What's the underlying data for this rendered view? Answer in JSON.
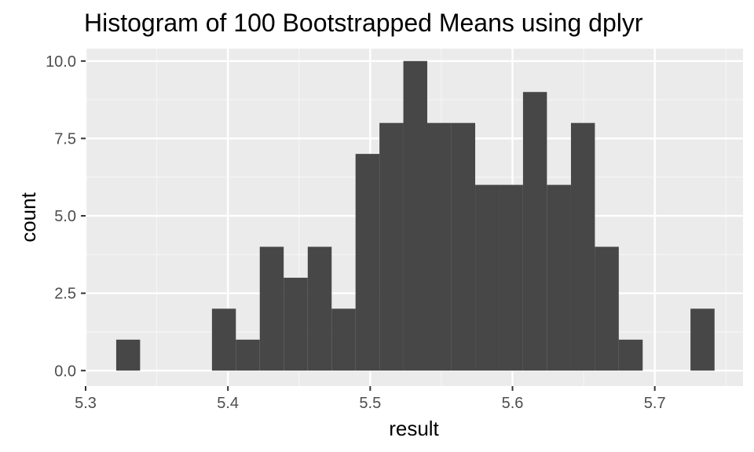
{
  "chart_data": {
    "type": "bar",
    "title": "Histogram of 100 Bootstrapped Means using dplyr",
    "xlabel": "result",
    "ylabel": "count",
    "xlim": [
      5.3,
      5.762
    ],
    "ylim": [
      -0.5,
      10.4
    ],
    "x_ticks": [
      5.3,
      5.4,
      5.5,
      5.6,
      5.7
    ],
    "y_ticks": [
      0.0,
      2.5,
      5.0,
      7.5,
      10.0
    ],
    "x_tick_labels": [
      "5.3",
      "5.4",
      "5.5",
      "5.6",
      "5.7"
    ],
    "y_tick_labels": [
      "0.0",
      "2.5",
      "5.0",
      "7.5",
      "10.0"
    ],
    "bins": [
      {
        "x0": 5.3215,
        "x1": 5.3383,
        "count": 1
      },
      {
        "x0": 5.3383,
        "x1": 5.3552,
        "count": 0
      },
      {
        "x0": 5.3552,
        "x1": 5.372,
        "count": 0
      },
      {
        "x0": 5.372,
        "x1": 5.3888,
        "count": 0
      },
      {
        "x0": 5.3888,
        "x1": 5.4056,
        "count": 2
      },
      {
        "x0": 5.4056,
        "x1": 5.4224,
        "count": 1
      },
      {
        "x0": 5.4224,
        "x1": 5.4392,
        "count": 4
      },
      {
        "x0": 5.4392,
        "x1": 5.4561,
        "count": 3
      },
      {
        "x0": 5.4561,
        "x1": 5.4729,
        "count": 4
      },
      {
        "x0": 5.4729,
        "x1": 5.4897,
        "count": 2
      },
      {
        "x0": 5.4897,
        "x1": 5.5065,
        "count": 7
      },
      {
        "x0": 5.5065,
        "x1": 5.5233,
        "count": 8
      },
      {
        "x0": 5.5233,
        "x1": 5.5401,
        "count": 10
      },
      {
        "x0": 5.5401,
        "x1": 5.557,
        "count": 8
      },
      {
        "x0": 5.557,
        "x1": 5.5738,
        "count": 8
      },
      {
        "x0": 5.5738,
        "x1": 5.5906,
        "count": 6
      },
      {
        "x0": 5.5906,
        "x1": 5.6074,
        "count": 6
      },
      {
        "x0": 5.6074,
        "x1": 5.6242,
        "count": 9
      },
      {
        "x0": 5.6242,
        "x1": 5.6411,
        "count": 6
      },
      {
        "x0": 5.6411,
        "x1": 5.6579,
        "count": 8
      },
      {
        "x0": 5.6579,
        "x1": 5.6747,
        "count": 4
      },
      {
        "x0": 5.6747,
        "x1": 5.6915,
        "count": 1
      },
      {
        "x0": 5.6915,
        "x1": 5.7083,
        "count": 0
      },
      {
        "x0": 5.7083,
        "x1": 5.7251,
        "count": 0
      },
      {
        "x0": 5.7251,
        "x1": 5.742,
        "count": 2
      }
    ],
    "grid": true,
    "legend": "none",
    "colors": {
      "bar_fill": "#474747",
      "panel_background": "#ebebeb",
      "grid_major": "#ffffff",
      "grid_minor": "#f5f5f5",
      "tick_mark": "#333333",
      "tick_label": "#4d4d4d"
    }
  }
}
